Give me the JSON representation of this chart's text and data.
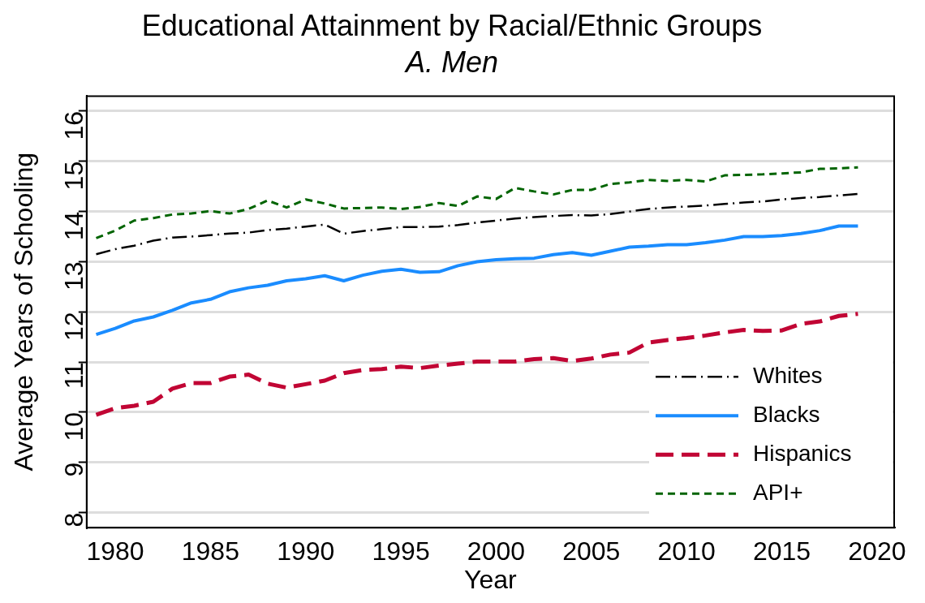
{
  "chart_data": {
    "type": "line",
    "title": "Educational Attainment by Racial/Ethnic Groups",
    "subtitle": "A. Men",
    "xlabel": "Year",
    "ylabel": "Average Years of Schooling",
    "x": [
      1979,
      1980,
      1981,
      1982,
      1983,
      1984,
      1985,
      1986,
      1987,
      1988,
      1989,
      1990,
      1991,
      1992,
      1993,
      1994,
      1995,
      1996,
      1997,
      1998,
      1999,
      2000,
      2001,
      2002,
      2003,
      2004,
      2005,
      2006,
      2007,
      2008,
      2009,
      2010,
      2011,
      2012,
      2013,
      2014,
      2015,
      2016,
      2017,
      2018,
      2019
    ],
    "xlim": [
      1978.5,
      2020.9
    ],
    "xticks": [
      1980,
      1985,
      1990,
      1995,
      2000,
      2005,
      2010,
      2015,
      2020
    ],
    "ylim": [
      7.7,
      16.3
    ],
    "yticks": [
      8,
      9,
      10,
      11,
      12,
      13,
      14,
      15,
      16
    ],
    "grid": "y",
    "legend": "bottom right",
    "marker": "none",
    "series": [
      {
        "name": "Whites",
        "color": "#000000",
        "line_style": "dashdot",
        "values": [
          13.15,
          13.25,
          13.32,
          13.42,
          13.48,
          13.5,
          13.53,
          13.56,
          13.58,
          13.63,
          13.66,
          13.7,
          13.74,
          13.56,
          13.61,
          13.65,
          13.69,
          13.69,
          13.7,
          13.73,
          13.78,
          13.82,
          13.86,
          13.89,
          13.91,
          13.93,
          13.92,
          13.95,
          14.0,
          14.05,
          14.08,
          14.1,
          14.12,
          14.15,
          14.18,
          14.2,
          14.24,
          14.27,
          14.29,
          14.32,
          14.35
        ]
      },
      {
        "name": "Blacks",
        "color": "#1a8cff",
        "line_style": "solid",
        "values": [
          11.55,
          11.67,
          11.82,
          11.9,
          12.03,
          12.18,
          12.25,
          12.4,
          12.48,
          12.53,
          12.62,
          12.66,
          12.72,
          12.62,
          12.73,
          12.81,
          12.85,
          12.79,
          12.8,
          12.92,
          13.0,
          13.04,
          13.06,
          13.07,
          13.14,
          13.18,
          13.13,
          13.21,
          13.29,
          13.31,
          13.34,
          13.34,
          13.38,
          13.43,
          13.5,
          13.5,
          13.52,
          13.56,
          13.62,
          13.71,
          13.71
        ]
      },
      {
        "name": "Hispanics",
        "color": "#c10534",
        "line_style": "dashed",
        "values": [
          9.95,
          10.08,
          10.13,
          10.21,
          10.47,
          10.58,
          10.58,
          10.71,
          10.75,
          10.57,
          10.49,
          10.56,
          10.63,
          10.78,
          10.84,
          10.86,
          10.91,
          10.88,
          10.93,
          10.97,
          11.01,
          11.01,
          11.01,
          11.06,
          11.08,
          11.02,
          11.07,
          11.15,
          11.19,
          11.39,
          11.44,
          11.48,
          11.53,
          11.59,
          11.64,
          11.62,
          11.63,
          11.76,
          11.81,
          11.92,
          11.96
        ]
      },
      {
        "name": "API+",
        "color": "#006400",
        "line_style": "dotted",
        "values": [
          13.47,
          13.62,
          13.82,
          13.87,
          13.94,
          13.96,
          14.01,
          13.96,
          14.05,
          14.22,
          14.08,
          14.24,
          14.16,
          14.06,
          14.07,
          14.08,
          14.05,
          14.09,
          14.17,
          14.11,
          14.3,
          14.25,
          14.47,
          14.4,
          14.34,
          14.43,
          14.43,
          14.55,
          14.58,
          14.63,
          14.61,
          14.63,
          14.6,
          14.72,
          14.73,
          14.74,
          14.76,
          14.78,
          14.85,
          14.86,
          14.88
        ]
      }
    ]
  }
}
